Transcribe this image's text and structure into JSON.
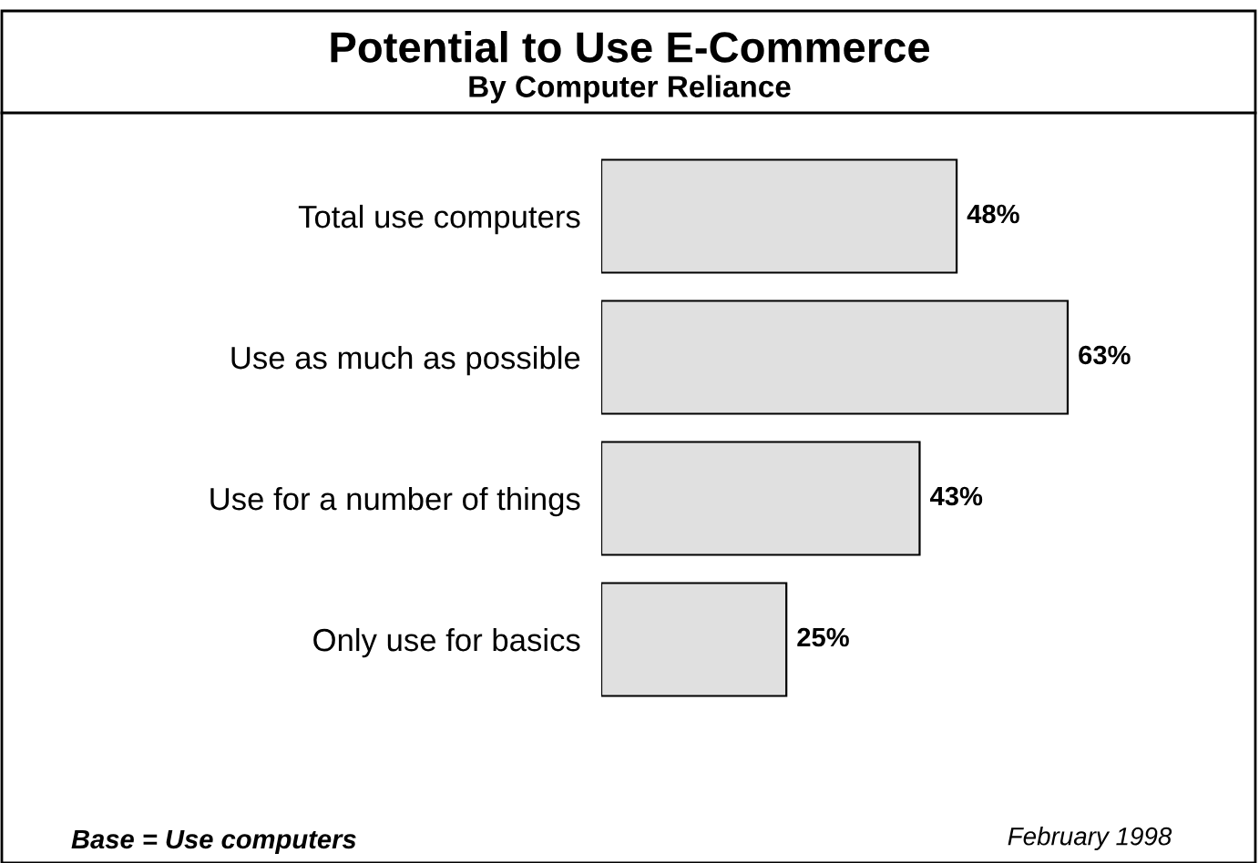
{
  "chart_data": {
    "type": "bar",
    "orientation": "horizontal",
    "title": "Potential to Use E-Commerce",
    "subtitle": "By Computer Reliance",
    "categories": [
      "Total use computers",
      "Use as much as possible",
      "Use for a number of things",
      "Only use for basics"
    ],
    "values": [
      48,
      63,
      43,
      25
    ],
    "color": "#e0e0e0",
    "value_labels": [
      "48%",
      "63%",
      "43%",
      "25%"
    ],
    "grid": false,
    "legend": false,
    "annotations": [
      "February 1998",
      "Base = Use computers"
    ]
  }
}
